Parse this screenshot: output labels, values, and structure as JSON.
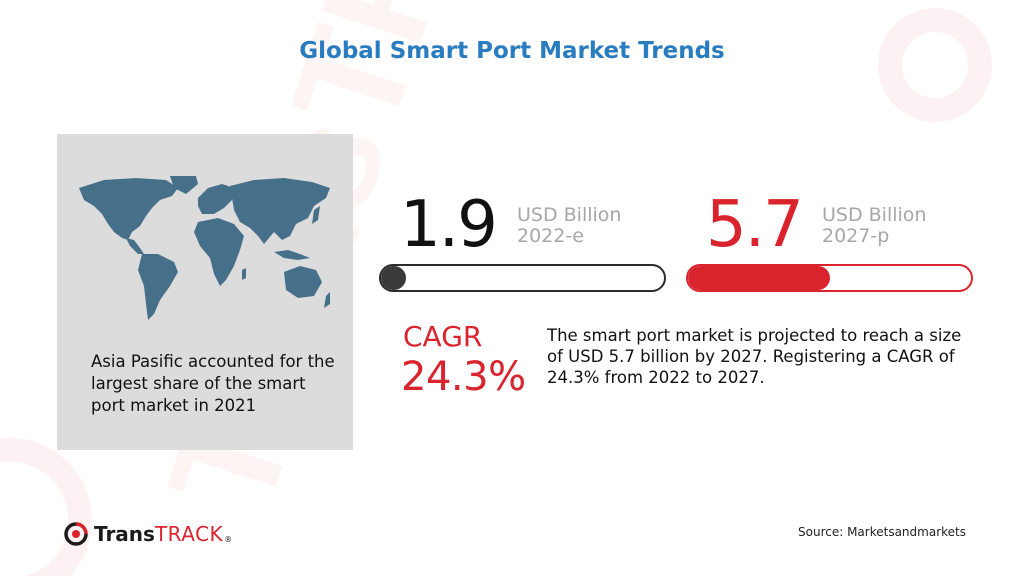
{
  "title": "Global Smart Port Market Trends",
  "map_card": {
    "caption": "Asia Pasific accounted for the largest share of the smart port market in 2021"
  },
  "stats": [
    {
      "value": "1.9",
      "unit_line1": "USD Billion",
      "unit_line2": "2022-e",
      "progress_fraction": 0.09,
      "color": "#2b2b2b"
    },
    {
      "value": "5.7",
      "unit_line1": "USD Billion",
      "unit_line2": "2027-p",
      "progress_fraction": 0.5,
      "color": "#d9232d"
    }
  ],
  "cagr": {
    "label": "CAGR",
    "value": "24.3%"
  },
  "description": "The smart port market is projected to reach a size of USD 5.7 billion by 2027. Registering a CAGR of 24.3% from 2022 to 2027.",
  "logo": {
    "part1": "Trans",
    "part2": "TRACK",
    "reg": "®"
  },
  "watermark_text": "TransTRACK",
  "source": "Source: Marketsandmarkets",
  "colors": {
    "title_blue": "#2a7cc1",
    "accent_red": "#d9232d",
    "map_fill": "#46708a",
    "card_bg": "#dcdcdc",
    "muted_text": "#a7a7a7"
  }
}
